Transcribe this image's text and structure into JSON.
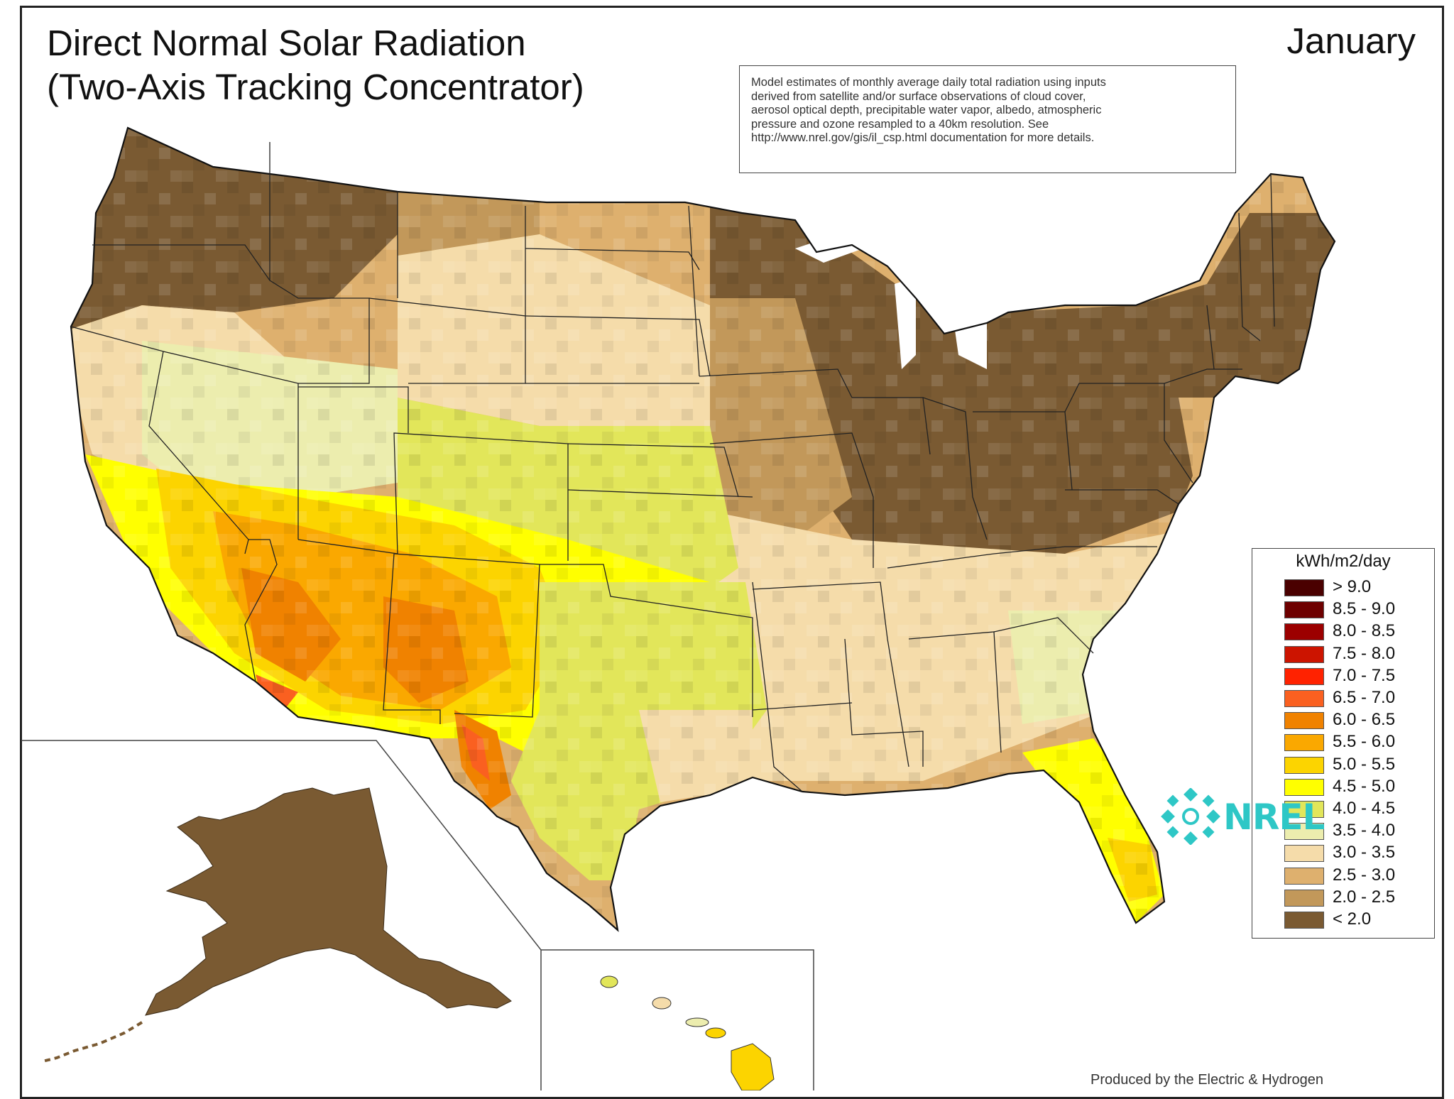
{
  "map": {
    "title_line1": "Direct Normal Solar Radiation",
    "title_line2": "(Two-Axis Tracking Concentrator)",
    "month": "January",
    "notes": [
      "Model estimates of monthly average daily total radiation using inputs",
      "derived from satellite and/or surface observations of cloud cover,",
      "aerosol optical depth, precipitable water vapor, albedo, atmospheric",
      "pressure and ozone resampled to a 40km resolution.  See",
      "http://www.nrel.gov/gis/il_csp.html documentation for more details."
    ]
  },
  "legend": {
    "title": "kWh/m2/day",
    "items": [
      {
        "label": "> 9.0",
        "color": "#4a0000"
      },
      {
        "label": "8.5 - 9.0",
        "color": "#6e0000"
      },
      {
        "label": "8.0 - 8.5",
        "color": "#9c0000"
      },
      {
        "label": "7.5 - 8.0",
        "color": "#cc1400"
      },
      {
        "label": "7.0 - 7.5",
        "color": "#ff2200"
      },
      {
        "label": "6.5 - 7.0",
        "color": "#fa6020"
      },
      {
        "label": "6.0 - 6.5",
        "color": "#f08200"
      },
      {
        "label": "5.5 - 6.0",
        "color": "#faa800"
      },
      {
        "label": "5.0 - 5.5",
        "color": "#fcd400"
      },
      {
        "label": "4.5 - 5.0",
        "color": "#ffff00"
      },
      {
        "label": "4.0 - 4.5",
        "color": "#e2e65a"
      },
      {
        "label": "3.5 - 4.0",
        "color": "#ecedae"
      },
      {
        "label": "3.0 - 3.5",
        "color": "#f5dcaa"
      },
      {
        "label": "2.5 - 3.0",
        "color": "#deb06e"
      },
      {
        "label": "2.0 - 2.5",
        "color": "#c2985a"
      },
      {
        "label": "< 2.0",
        "color": "#7a5a32"
      }
    ]
  },
  "logo": {
    "text": "NREL",
    "color": "#2ec7c6"
  },
  "credit": "Produced by the Electric & Hydrogen"
}
